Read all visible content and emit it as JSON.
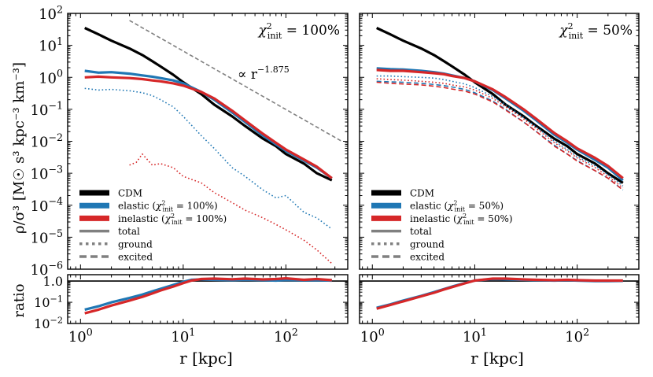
{
  "figure": {
    "xlabel": "r [kpc]",
    "ylabel_top": "ρ/σ³ [M☉ s³ kpc⁻³ km⁻³]",
    "ylabel_bottom": "ratio",
    "x_tick_labels": [
      "10^0",
      "10^1",
      "10^2"
    ],
    "y_tick_labels_top": [
      "10^2",
      "10^1",
      "10^0",
      "10^-1",
      "10^-2",
      "10^-3",
      "10^-4",
      "10^-5",
      "10^-6"
    ],
    "y_tick_labels_bottom": [
      "1.0",
      "10^-1",
      "10^-2"
    ]
  },
  "colors": {
    "cdm": "#000000",
    "elastic": "#1f77b4",
    "inelastic": "#d62728",
    "guide": "#808080"
  },
  "chart_data": [
    {
      "type": "line",
      "panel": "left-density",
      "annotation": "χ²_init = 100%",
      "xscale": "log",
      "yscale": "log",
      "xlim": [
        0.75,
        400
      ],
      "ylim": [
        1e-06,
        100
      ],
      "xlabel": "",
      "ylabel": "ρ/σ³ [M☉ s³ kpc⁻³ km⁻³]",
      "legend_position": "lower-left",
      "legend": [
        {
          "label": "CDM",
          "color": "#000000",
          "style": "solid"
        },
        {
          "label": "elastic (χ²_init = 100%)",
          "color": "#1f77b4",
          "style": "solid"
        },
        {
          "label": "inelastic (χ²_init = 100%)",
          "color": "#d62728",
          "style": "solid"
        },
        {
          "label": "total",
          "color": "#808080",
          "style": "solid"
        },
        {
          "label": "ground",
          "color": "#808080",
          "style": "dotted"
        },
        {
          "label": "excited",
          "color": "#808080",
          "style": "dashed"
        }
      ],
      "reference_line": {
        "label": "∝ r^-1.875",
        "x": [
          3,
          350
        ],
        "y": [
          60,
          0.01
        ]
      },
      "series": [
        {
          "name": "CDM total",
          "color": "#000000",
          "style": "solid",
          "x": [
            1.1,
            1.5,
            2,
            3,
            4,
            5,
            6,
            8,
            10,
            15,
            20,
            30,
            40,
            60,
            80,
            100,
            150,
            200,
            280
          ],
          "y": [
            35,
            22,
            14,
            8,
            5,
            3.2,
            2.2,
            1.2,
            0.7,
            0.3,
            0.14,
            0.06,
            0.03,
            0.012,
            0.007,
            0.004,
            0.002,
            0.001,
            0.0006
          ]
        },
        {
          "name": "elastic total",
          "color": "#1f77b4",
          "style": "solid",
          "x": [
            1.1,
            1.5,
            2,
            3,
            4,
            5,
            6,
            8,
            10,
            15,
            20,
            30,
            40,
            60,
            80,
            100,
            150,
            200,
            280
          ],
          "y": [
            1.6,
            1.4,
            1.45,
            1.3,
            1.15,
            1.05,
            0.95,
            0.8,
            0.65,
            0.35,
            0.2,
            0.08,
            0.04,
            0.015,
            0.008,
            0.005,
            0.0025,
            0.0015,
            0.0007
          ]
        },
        {
          "name": "elastic ground",
          "color": "#1f77b4",
          "style": "dotted",
          "x": [
            1.1,
            1.5,
            2,
            3,
            4,
            5,
            6,
            8,
            10,
            15,
            20,
            30,
            40,
            60,
            80,
            100,
            150,
            200,
            280
          ],
          "y": [
            0.45,
            0.4,
            0.42,
            0.38,
            0.33,
            0.27,
            0.2,
            0.12,
            0.06,
            0.015,
            0.006,
            0.0015,
            0.0008,
            0.0003,
            0.00017,
            0.0002,
            6e-05,
            4e-05,
            1.8e-05
          ]
        },
        {
          "name": "inelastic total",
          "color": "#d62728",
          "style": "solid",
          "x": [
            1.1,
            1.5,
            2,
            3,
            4,
            5,
            6,
            8,
            10,
            15,
            20,
            30,
            40,
            60,
            80,
            100,
            150,
            200,
            280
          ],
          "y": [
            1.0,
            1.05,
            1.0,
            0.95,
            0.88,
            0.8,
            0.75,
            0.65,
            0.55,
            0.35,
            0.22,
            0.09,
            0.045,
            0.017,
            0.009,
            0.0055,
            0.0027,
            0.0016,
            0.0007
          ]
        },
        {
          "name": "inelastic ground",
          "color": "#d62728",
          "style": "dotted",
          "x": [
            3,
            3.5,
            4,
            5,
            6,
            8,
            10,
            15,
            20,
            30,
            40,
            60,
            80,
            100,
            150,
            200,
            280
          ],
          "y": [
            0.0018,
            0.0022,
            0.004,
            0.0018,
            0.002,
            0.0015,
            0.0008,
            0.0005,
            0.00025,
            0.00012,
            7e-05,
            4e-05,
            2.5e-05,
            1.7e-05,
            8e-06,
            4e-06,
            1.5e-06
          ]
        }
      ]
    },
    {
      "type": "line",
      "panel": "right-density",
      "annotation": "χ²_init = 50%",
      "xscale": "log",
      "yscale": "log",
      "xlim": [
        0.75,
        400
      ],
      "ylim": [
        1e-06,
        100
      ],
      "legend_position": "lower-left",
      "legend": [
        {
          "label": "CDM",
          "color": "#000000",
          "style": "solid"
        },
        {
          "label": "elastic (χ²_init = 50%)",
          "color": "#1f77b4",
          "style": "solid"
        },
        {
          "label": "inelastic (χ²_init = 50%)",
          "color": "#d62728",
          "style": "solid"
        },
        {
          "label": "total",
          "color": "#808080",
          "style": "solid"
        },
        {
          "label": "ground",
          "color": "#808080",
          "style": "dotted"
        },
        {
          "label": "excited",
          "color": "#808080",
          "style": "dashed"
        }
      ],
      "series": [
        {
          "name": "CDM total",
          "color": "#000000",
          "style": "solid",
          "x": [
            1.1,
            1.5,
            2,
            3,
            4,
            5,
            6,
            8,
            10,
            15,
            20,
            30,
            40,
            60,
            80,
            100,
            150,
            200,
            280
          ],
          "y": [
            35,
            22,
            14,
            8,
            5,
            3.2,
            2.2,
            1.2,
            0.7,
            0.3,
            0.14,
            0.06,
            0.03,
            0.012,
            0.007,
            0.004,
            0.002,
            0.001,
            0.0005
          ]
        },
        {
          "name": "elastic total",
          "color": "#1f77b4",
          "style": "solid",
          "x": [
            1.1,
            1.5,
            2,
            3,
            4,
            5,
            6,
            8,
            10,
            15,
            20,
            30,
            40,
            60,
            80,
            100,
            150,
            200,
            280
          ],
          "y": [
            1.9,
            1.8,
            1.75,
            1.6,
            1.45,
            1.3,
            1.15,
            0.95,
            0.75,
            0.4,
            0.22,
            0.09,
            0.045,
            0.016,
            0.009,
            0.0055,
            0.0026,
            0.0015,
            0.0006
          ]
        },
        {
          "name": "elastic ground",
          "color": "#1f77b4",
          "style": "dotted",
          "x": [
            1.1,
            1.5,
            2,
            3,
            4,
            5,
            6,
            8,
            10,
            15,
            20,
            30,
            40,
            60,
            80,
            100,
            150,
            200,
            280
          ],
          "y": [
            1.1,
            1.1,
            1.05,
            1.0,
            0.95,
            0.85,
            0.75,
            0.62,
            0.48,
            0.25,
            0.14,
            0.055,
            0.028,
            0.01,
            0.0055,
            0.0033,
            0.0017,
            0.0009,
            0.0004
          ]
        },
        {
          "name": "elastic excited",
          "color": "#1f77b4",
          "style": "dashed",
          "x": [
            1.1,
            1.5,
            2,
            3,
            4,
            5,
            6,
            8,
            10,
            15,
            20,
            30,
            40,
            60,
            80,
            100,
            150,
            200,
            280
          ],
          "y": [
            0.75,
            0.72,
            0.7,
            0.65,
            0.6,
            0.55,
            0.5,
            0.42,
            0.33,
            0.18,
            0.1,
            0.04,
            0.02,
            0.0075,
            0.004,
            0.0025,
            0.0012,
            0.0007,
            0.0003
          ]
        },
        {
          "name": "inelastic total",
          "color": "#d62728",
          "style": "solid",
          "x": [
            1.1,
            1.5,
            2,
            3,
            4,
            5,
            6,
            8,
            10,
            15,
            20,
            30,
            40,
            60,
            80,
            100,
            150,
            200,
            280
          ],
          "y": [
            1.7,
            1.6,
            1.6,
            1.45,
            1.35,
            1.25,
            1.1,
            0.95,
            0.75,
            0.42,
            0.24,
            0.1,
            0.05,
            0.018,
            0.01,
            0.006,
            0.003,
            0.0017,
            0.0007
          ]
        },
        {
          "name": "inelastic ground",
          "color": "#d62728",
          "style": "dotted",
          "x": [
            1.1,
            1.5,
            2,
            3,
            4,
            5,
            6,
            8,
            10,
            15,
            20,
            30,
            40,
            60,
            80,
            100,
            150,
            200,
            280
          ],
          "y": [
            0.9,
            0.85,
            0.82,
            0.75,
            0.7,
            0.65,
            0.58,
            0.5,
            0.4,
            0.22,
            0.12,
            0.05,
            0.025,
            0.009,
            0.005,
            0.003,
            0.0015,
            0.0008,
            0.00035
          ]
        },
        {
          "name": "inelastic excited",
          "color": "#d62728",
          "style": "dashed",
          "x": [
            1.1,
            1.5,
            2,
            3,
            4,
            5,
            6,
            8,
            10,
            15,
            20,
            30,
            40,
            60,
            80,
            100,
            150,
            200,
            280
          ],
          "y": [
            0.7,
            0.65,
            0.62,
            0.58,
            0.53,
            0.48,
            0.43,
            0.37,
            0.3,
            0.17,
            0.095,
            0.04,
            0.02,
            0.007,
            0.004,
            0.0024,
            0.0012,
            0.0007,
            0.0003
          ]
        }
      ]
    },
    {
      "type": "line",
      "panel": "left-ratio",
      "xscale": "log",
      "yscale": "log",
      "xlim": [
        0.75,
        400
      ],
      "ylim": [
        0.01,
        2
      ],
      "xlabel": "r [kpc]",
      "ylabel": "ratio",
      "reference_y": 1.0,
      "series": [
        {
          "name": "elastic / CDM",
          "color": "#1f77b4",
          "style": "solid",
          "x": [
            1.1,
            1.5,
            2,
            3,
            4,
            5,
            6,
            8,
            10,
            12,
            15,
            20,
            30,
            40,
            60,
            80,
            100,
            150,
            200,
            280
          ],
          "y": [
            0.045,
            0.065,
            0.1,
            0.16,
            0.23,
            0.33,
            0.43,
            0.66,
            0.92,
            1.15,
            1.2,
            1.15,
            1.1,
            1.15,
            1.1,
            1.05,
            1.12,
            1.08,
            1.1,
            1.05
          ]
        },
        {
          "name": "inelastic / CDM",
          "color": "#d62728",
          "style": "solid",
          "x": [
            1.1,
            1.5,
            2,
            3,
            4,
            5,
            6,
            8,
            10,
            12,
            15,
            20,
            30,
            40,
            60,
            80,
            100,
            150,
            200,
            280
          ],
          "y": [
            0.03,
            0.045,
            0.07,
            0.12,
            0.18,
            0.26,
            0.36,
            0.55,
            0.8,
            1.05,
            1.25,
            1.3,
            1.22,
            1.3,
            1.2,
            1.25,
            1.35,
            1.15,
            1.25,
            1.1
          ]
        }
      ]
    },
    {
      "type": "line",
      "panel": "right-ratio",
      "xscale": "log",
      "yscale": "log",
      "xlim": [
        0.75,
        400
      ],
      "ylim": [
        0.01,
        2
      ],
      "xlabel": "r [kpc]",
      "reference_y": 1.0,
      "series": [
        {
          "name": "elastic / CDM",
          "color": "#1f77b4",
          "style": "solid",
          "x": [
            1.1,
            1.5,
            2,
            3,
            4,
            5,
            6,
            8,
            10,
            15,
            20,
            30,
            40,
            60,
            80,
            100,
            150,
            200,
            280
          ],
          "y": [
            0.055,
            0.08,
            0.12,
            0.2,
            0.3,
            0.42,
            0.55,
            0.8,
            1.05,
            1.25,
            1.2,
            1.15,
            1.1,
            1.05,
            1.1,
            1.05,
            1.0,
            1.0,
            1.02
          ]
        },
        {
          "name": "inelastic / CDM",
          "color": "#d62728",
          "style": "solid",
          "x": [
            1.1,
            1.5,
            2,
            3,
            4,
            5,
            6,
            8,
            10,
            15,
            20,
            30,
            40,
            60,
            80,
            100,
            150,
            200,
            280
          ],
          "y": [
            0.05,
            0.075,
            0.11,
            0.19,
            0.28,
            0.4,
            0.52,
            0.78,
            1.05,
            1.3,
            1.3,
            1.2,
            1.15,
            1.1,
            1.15,
            1.1,
            1.05,
            1.05,
            1.05
          ]
        }
      ]
    }
  ]
}
